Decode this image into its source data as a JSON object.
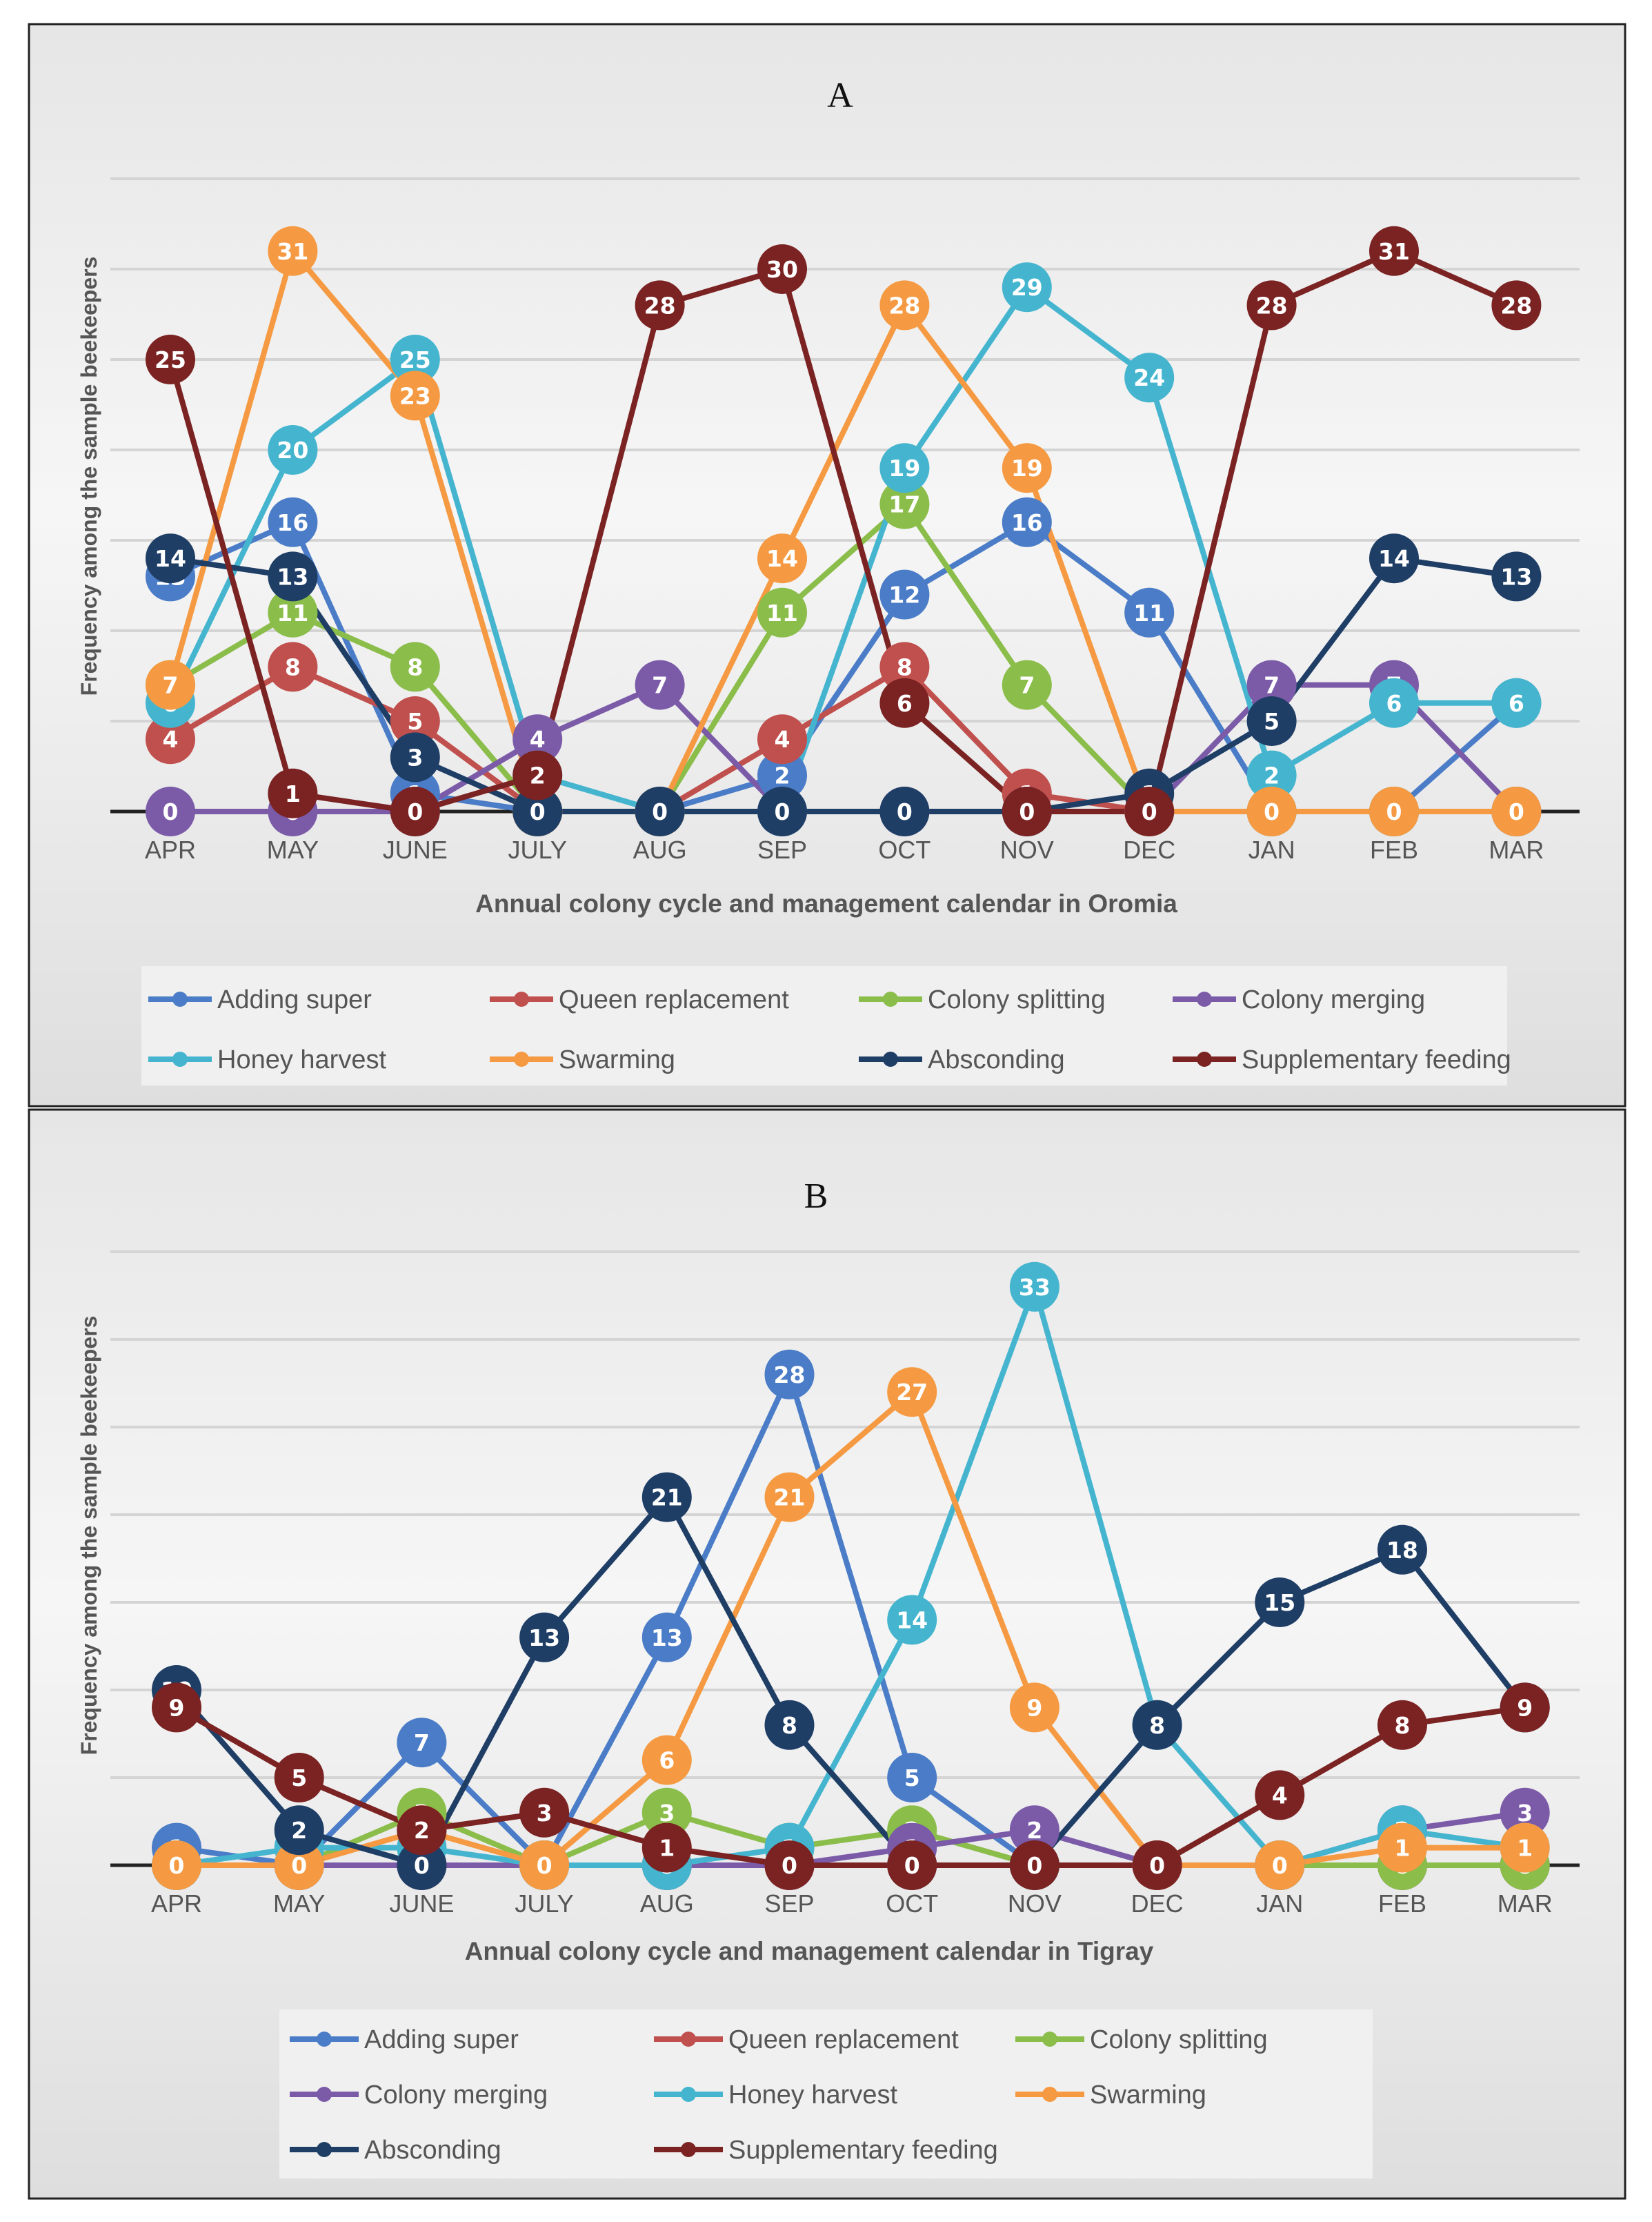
{
  "colors": {
    "Adding super": "#4a7cc7",
    "Queen replacement": "#c0504d",
    "Colony splitting": "#8bbd4a",
    "Colony merging": "#7b5ba8",
    "Honey harvest": "#45b5cf",
    "Swarming": "#f59a42",
    "Absconding": "#1f3e66",
    "Supplementary feeding": "#7b2222"
  },
  "chart_data": [
    {
      "type": "line",
      "panel": "A",
      "title": "A",
      "xlabel": "Annual colony cycle and management calendar in Oromia",
      "ylabel": "Frequency among the sample beekeepers",
      "categories": [
        "APR",
        "MAY",
        "JUNE",
        "JULY",
        "AUG",
        "SEP",
        "OCT",
        "NOV",
        "DEC",
        "JAN",
        "FEB",
        "MAR"
      ],
      "ylim": [
        0,
        35
      ],
      "grid": true,
      "legend_position": "bottom",
      "series": [
        {
          "name": "Adding super",
          "values": [
            13,
            16,
            1,
            0,
            0,
            2,
            12,
            16,
            11,
            0,
            0,
            6
          ]
        },
        {
          "name": "Queen replacement",
          "values": [
            4,
            8,
            5,
            0,
            0,
            4,
            8,
            1,
            0,
            0,
            0,
            0
          ]
        },
        {
          "name": "Colony splitting",
          "values": [
            7,
            11,
            8,
            0,
            0,
            11,
            17,
            7,
            0,
            0,
            0,
            0
          ]
        },
        {
          "name": "Colony merging",
          "values": [
            0,
            0,
            0,
            4,
            7,
            0,
            0,
            0,
            0,
            7,
            7,
            0
          ]
        },
        {
          "name": "Honey harvest",
          "values": [
            6,
            20,
            25,
            2,
            0,
            0,
            19,
            29,
            24,
            2,
            6,
            6
          ]
        },
        {
          "name": "Swarming",
          "values": [
            7,
            31,
            23,
            0,
            0,
            14,
            28,
            19,
            0,
            0,
            0,
            0
          ]
        },
        {
          "name": "Absconding",
          "values": [
            14,
            13,
            3,
            0,
            0,
            0,
            0,
            0,
            1,
            5,
            14,
            13
          ]
        },
        {
          "name": "Supplementary feeding",
          "values": [
            25,
            1,
            0,
            2,
            28,
            30,
            6,
            0,
            0,
            28,
            31,
            28
          ]
        }
      ]
    },
    {
      "type": "line",
      "panel": "B",
      "title": "B",
      "xlabel": "Annual colony cycle and management calendar in Tigray",
      "ylabel": "Frequency among the sample beekeepers",
      "categories": [
        "APR",
        "MAY",
        "JUNE",
        "JULY",
        "AUG",
        "SEP",
        "OCT",
        "NOV",
        "DEC",
        "JAN",
        "FEB",
        "MAR"
      ],
      "ylim": [
        0,
        35
      ],
      "grid": true,
      "legend_position": "bottom",
      "series": [
        {
          "name": "Adding super",
          "values": [
            1,
            0,
            7,
            0,
            13,
            28,
            5,
            0,
            0,
            0,
            0,
            0
          ]
        },
        {
          "name": "Queen replacement",
          "values": [
            0,
            0,
            0,
            0,
            0,
            0,
            0,
            0,
            0,
            0,
            0,
            0
          ]
        },
        {
          "name": "Colony splitting",
          "values": [
            0,
            0,
            3,
            0,
            3,
            1,
            2,
            0,
            0,
            0,
            0,
            0
          ]
        },
        {
          "name": "Colony merging",
          "values": [
            0,
            0,
            0,
            0,
            0,
            0,
            1,
            2,
            0,
            0,
            2,
            3
          ]
        },
        {
          "name": "Honey harvest",
          "values": [
            0,
            1,
            1,
            0,
            0,
            1,
            14,
            33,
            8,
            0,
            2,
            1
          ]
        },
        {
          "name": "Swarming",
          "values": [
            0,
            0,
            2,
            0,
            6,
            21,
            27,
            9,
            0,
            0,
            1,
            1
          ]
        },
        {
          "name": "Absconding",
          "values": [
            10,
            2,
            0,
            13,
            21,
            8,
            0,
            0,
            8,
            15,
            18,
            9
          ]
        },
        {
          "name": "Supplementary feeding",
          "values": [
            9,
            5,
            2,
            3,
            1,
            0,
            0,
            0,
            0,
            4,
            8,
            9
          ]
        }
      ]
    }
  ]
}
